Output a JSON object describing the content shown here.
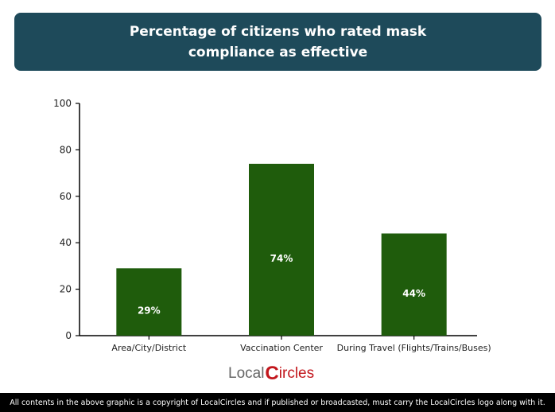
{
  "header": {
    "title": "Percentage of citizens who rated mask compliance as effective"
  },
  "chart_data": {
    "type": "bar",
    "categories": [
      "Area/City/District",
      "Vaccination Center",
      "During Travel (Flights/Trains/Buses)"
    ],
    "values": [
      29,
      74,
      44
    ],
    "data_labels": [
      "29%",
      "74%",
      "44%"
    ],
    "title": "Percentage of citizens who rated mask compliance as effective",
    "xlabel": "",
    "ylabel": "",
    "ylim": [
      0,
      100
    ],
    "yticks": [
      0,
      20,
      40,
      60,
      80,
      100
    ],
    "grid": false,
    "legend": "none",
    "bar_color": "#1f5c0c",
    "label_color": "#ffffff"
  },
  "logo": {
    "text_before": "Local",
    "text_c": "C",
    "text_after": "ircles"
  },
  "footer": {
    "text": "All contents in the above graphic is a copyright of LocalCircles and if published or broadcasted, must carry the LocalCircles logo along with it."
  },
  "colors": {
    "banner": "#1e4a5a",
    "bar": "#1f5c0c",
    "footer": "#000000",
    "brand_red": "#c2161c"
  }
}
